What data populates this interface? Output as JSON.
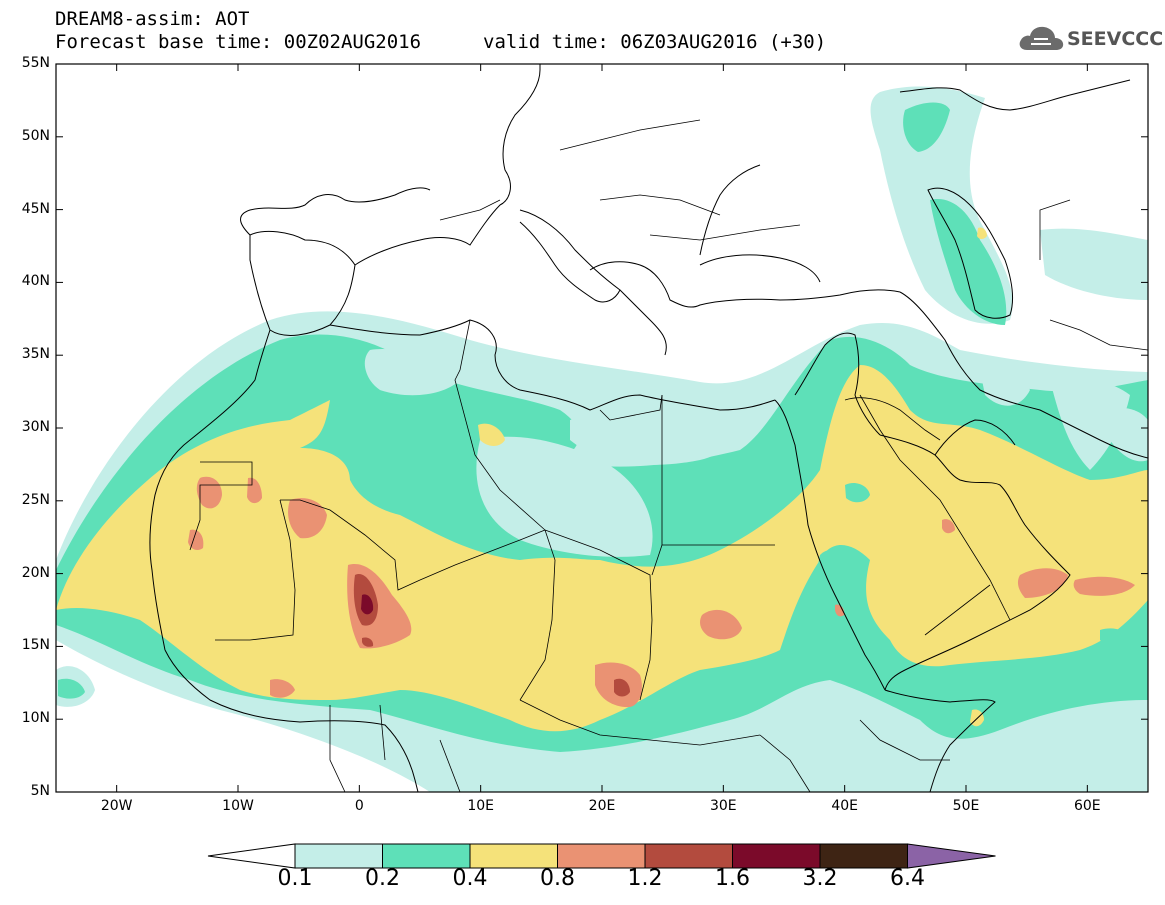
{
  "header": {
    "title": "DREAM8-assim: AOT",
    "base_time": "Forecast base time: 00Z02AUG2016",
    "valid_time": "valid time: 06Z03AUG2016 (+30)",
    "logo_text": "SEEVCCC"
  },
  "map": {
    "lon_range": [
      -25,
      65
    ],
    "lat_range": [
      5,
      55
    ],
    "lat_ticks": [
      {
        "value": 55,
        "label": "55N"
      },
      {
        "value": 50,
        "label": "50N"
      },
      {
        "value": 45,
        "label": "45N"
      },
      {
        "value": 40,
        "label": "40N"
      },
      {
        "value": 35,
        "label": "35N"
      },
      {
        "value": 30,
        "label": "30N"
      },
      {
        "value": 25,
        "label": "25N"
      },
      {
        "value": 20,
        "label": "20N"
      },
      {
        "value": 15,
        "label": "15N"
      },
      {
        "value": 10,
        "label": "10N"
      },
      {
        "value": 5,
        "label": "5N"
      }
    ],
    "lon_ticks": [
      {
        "value": -20,
        "label": "20W"
      },
      {
        "value": -10,
        "label": "10W"
      },
      {
        "value": 0,
        "label": "0"
      },
      {
        "value": 10,
        "label": "10E"
      },
      {
        "value": 20,
        "label": "20E"
      },
      {
        "value": 30,
        "label": "30E"
      },
      {
        "value": 40,
        "label": "40E"
      },
      {
        "value": 50,
        "label": "50E"
      },
      {
        "value": 60,
        "label": "60E"
      }
    ]
  },
  "colorbar": {
    "bins": [
      {
        "color": "#c4eee8"
      },
      {
        "color": "#5ee0b8"
      },
      {
        "color": "#f5e27a"
      },
      {
        "color": "#ea9273"
      },
      {
        "color": "#b34b3e"
      },
      {
        "color": "#7b0a2a"
      },
      {
        "color": "#3e2414"
      }
    ],
    "below_color": "#ffffff",
    "above_color": "#8b63a6",
    "labels": [
      "0.1",
      "0.2",
      "0.4",
      "0.8",
      "1.2",
      "1.6",
      "3.2",
      "6.4"
    ]
  }
}
